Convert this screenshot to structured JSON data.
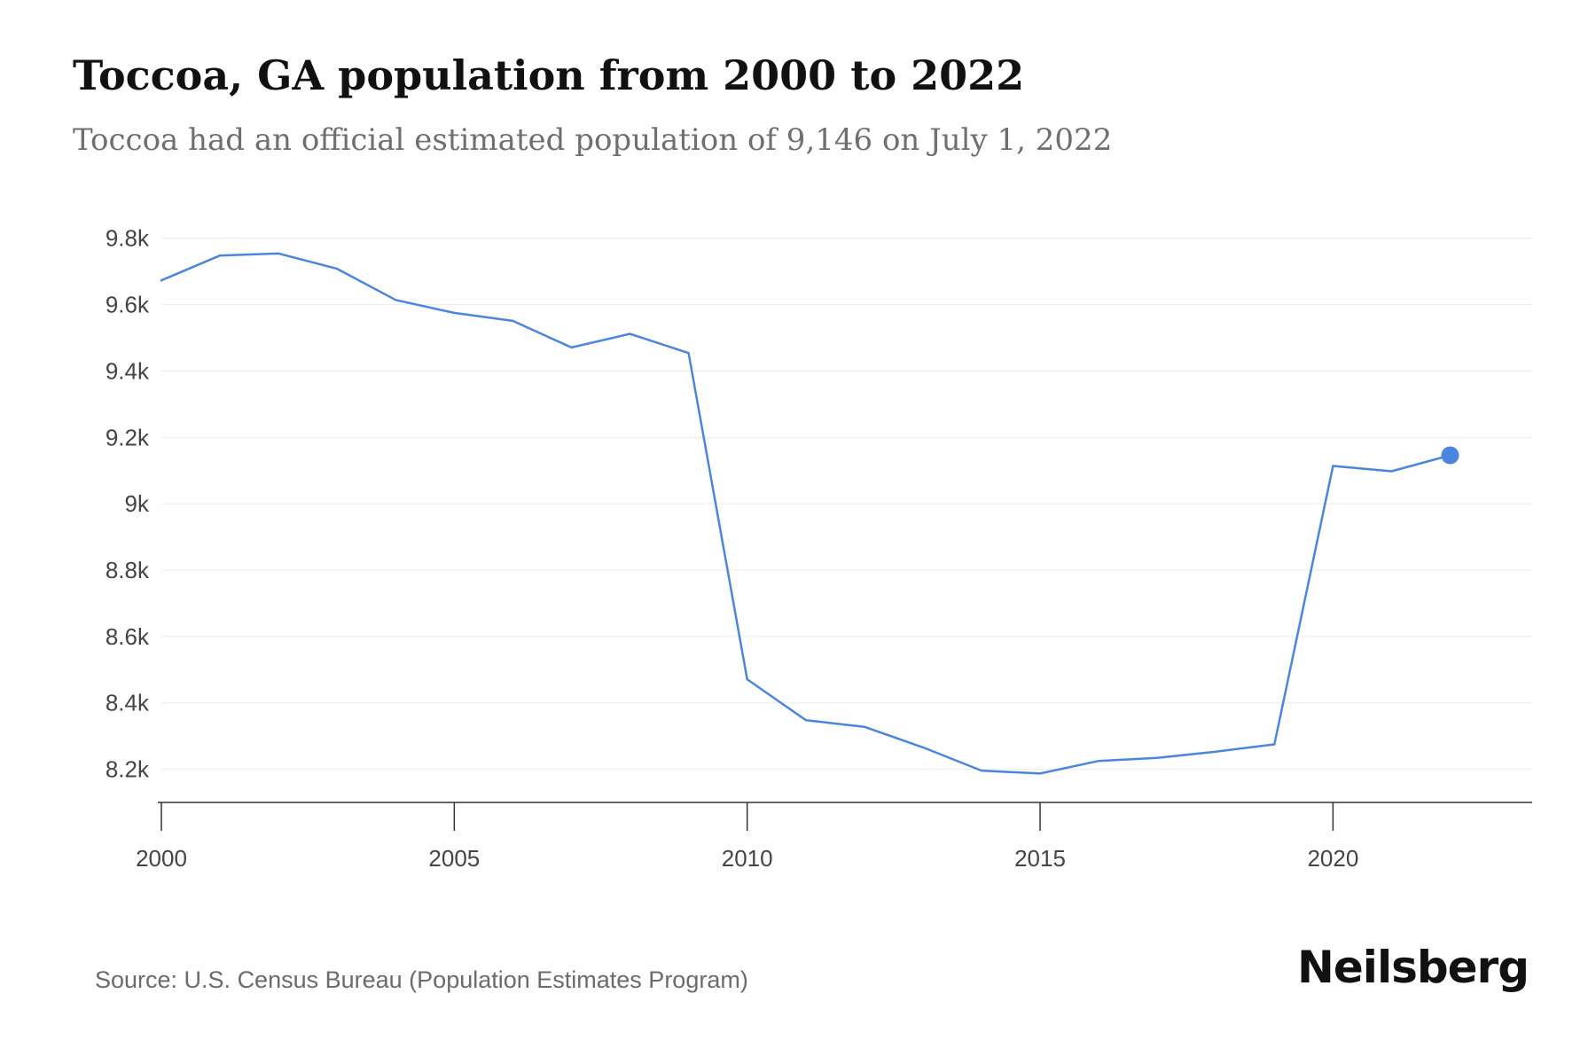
{
  "title": "Toccoa, GA population from 2000 to 2022",
  "subtitle": "Toccoa had an official estimated population of 9,146 on July 1, 2022",
  "source": "Source: U.S. Census Bureau (Population Estimates Program)",
  "brand": "Neilsberg",
  "colors": {
    "line": "#4a86e0",
    "grid": "#ececec",
    "axis": "#333333",
    "tick_text": "#444444"
  },
  "chart_data": {
    "type": "line",
    "title": "Toccoa, GA population from 2000 to 2022",
    "xlabel": "",
    "ylabel": "",
    "x": [
      2000,
      2001,
      2002,
      2003,
      2004,
      2005,
      2006,
      2007,
      2008,
      2009,
      2010,
      2011,
      2012,
      2013,
      2014,
      2015,
      2016,
      2017,
      2018,
      2019,
      2020,
      2021,
      2022
    ],
    "series": [
      {
        "values": [
          9673,
          9748,
          9754,
          9708,
          9614,
          9575,
          9551,
          9471,
          9512,
          9454,
          8471,
          8348,
          8328,
          8266,
          8196,
          8187,
          8225,
          8234,
          8253,
          8275,
          9114,
          9098,
          9146
        ]
      }
    ],
    "highlight_last_point": true,
    "xlim": [
      2000,
      2023.4
    ],
    "ylim": [
      8100,
      9850
    ],
    "x_ticks": [
      2000,
      2005,
      2010,
      2015,
      2020
    ],
    "x_tick_labels": [
      "2000",
      "2005",
      "2010",
      "2015",
      "2020"
    ],
    "y_ticks": [
      8200,
      8400,
      8600,
      8800,
      9000,
      9200,
      9400,
      9600,
      9800
    ],
    "y_tick_labels": [
      "8.2k",
      "8.4k",
      "8.6k",
      "8.8k",
      "9k",
      "9.2k",
      "9.4k",
      "9.6k",
      "9.8k"
    ],
    "grid": true,
    "legend": "none"
  }
}
